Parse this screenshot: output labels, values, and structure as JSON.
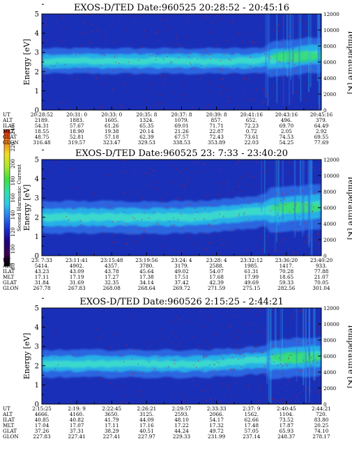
{
  "colors": {
    "background_deep": "#1a2fb8",
    "band_mid": "#2f6fe8",
    "band_core": "#24b8e8",
    "band_hot": "#3fe0c8",
    "green_hot": "#38e04a",
    "noise_red": "#c21a1a"
  },
  "colorbar": {
    "title": "Second Harmonic Current",
    "ticks": [
      "80",
      "100",
      "120",
      "140",
      "160",
      "180",
      "200",
      "220",
      "240"
    ],
    "colors": [
      "#000000",
      "#3c0050",
      "#200080",
      "#1830d0",
      "#2a78f0",
      "#30c8e8",
      "#30e0a8",
      "#40e040",
      "#a8e830",
      "#f0e020",
      "#f08820",
      "#e82010"
    ]
  },
  "chart_data": [
    {
      "type": "heatmap",
      "title": "EXOS-D/TED   Date:960525  20:28:52 - 20:45:16",
      "ylabel": "Energy [eV]",
      "y2label": "Temperature [K]",
      "ylim": [
        0,
        5
      ],
      "y2lim": [
        0,
        12000
      ],
      "yticks": [
        "0",
        "1",
        "2",
        "3",
        "4",
        "5"
      ],
      "y2ticks": [
        "0",
        "2000",
        "4000",
        "6000",
        "8000",
        "10000",
        "12000"
      ],
      "band": {
        "center_ev": 2.55,
        "width_ev": 0.55,
        "right_center_ev": 2.9,
        "rise_start_frac": 0.75
      },
      "rows": [
        {
          "label": "UT",
          "values": [
            "20:28:52",
            "20:31: 0",
            "20:33: 0",
            "20:35: 8",
            "20:37: 8",
            "20:39: 8",
            "20:41:16",
            "20:43:16",
            "20:45:16"
          ]
        },
        {
          "label": "ALT",
          "values": [
            "2189.",
            "1883.",
            "1605.",
            "1324.",
            "1079.",
            "857.",
            "652.",
            "496.",
            "379."
          ]
        },
        {
          "label": "ILAT",
          "values": [
            "54.31",
            "57.67",
            "61.26",
            "65.35",
            "69.01",
            "71.71",
            "72.23",
            "69.70",
            "64.49"
          ]
        },
        {
          "label": "MLT",
          "values": [
            "18.55",
            "18.90",
            "19.38",
            "20.14",
            "21.26",
            "22.87",
            "0.72",
            "2.05",
            "2.92"
          ]
        },
        {
          "label": "GLAT",
          "values": [
            "48.75",
            "52.81",
            "57.18",
            "62.39",
            "67.57",
            "72.43",
            "73.61",
            "74.53",
            "69.55"
          ]
        },
        {
          "label": "GLON",
          "values": [
            "316.48",
            "319.57",
            "323.47",
            "329.53",
            "338.53",
            "353.89",
            "22.03",
            "54.25",
            "77.69"
          ]
        }
      ]
    },
    {
      "type": "heatmap",
      "title": "EXOS-D/TED   Date:960525  23: 7:33 - 23:40:20",
      "ylabel": "Energy [eV]",
      "y2label": "Temperature [K]",
      "ylim": [
        0,
        5
      ],
      "y2lim": [
        0,
        12000
      ],
      "yticks": [
        "0",
        "1",
        "2",
        "3",
        "4",
        "5"
      ],
      "y2ticks": [
        "0",
        "2000",
        "4000",
        "6000",
        "8000",
        "10000",
        "12000"
      ],
      "band": {
        "center_ev": 2.0,
        "width_ev": 0.7,
        "right_center_ev": 2.6,
        "rise_start_frac": 0.55
      },
      "rows": [
        {
          "label": "UT",
          "values": [
            "23: 7:33",
            "23:11:41",
            "23:15:48",
            "23:19:56",
            "23:24: 4",
            "23:28: 4",
            "23:32:12",
            "23:36:20",
            "23:40:20"
          ]
        },
        {
          "label": "ALT",
          "values": [
            "5414.",
            "4902.",
            "4357.",
            "3780.",
            "3179.",
            "2588.",
            "1985.",
            "1417.",
            "933."
          ]
        },
        {
          "label": "ILAT",
          "values": [
            "43.23",
            "43.09",
            "43.78",
            "45.64",
            "49.02",
            "54.07",
            "61.31",
            "70.28",
            "77.88"
          ]
        },
        {
          "label": "MLT",
          "values": [
            "17.11",
            "17.19",
            "17.27",
            "17.38",
            "17.51",
            "17.68",
            "17.99",
            "18.65",
            "21.07"
          ]
        },
        {
          "label": "GLAT",
          "values": [
            "31.84",
            "31.69",
            "32.35",
            "34.14",
            "37.42",
            "42.39",
            "49.69",
            "59.33",
            "70.05"
          ]
        },
        {
          "label": "GLON",
          "values": [
            "267.78",
            "267.83",
            "268.08",
            "268.64",
            "269.72",
            "271.59",
            "275.15",
            "282.56",
            "301.04"
          ]
        }
      ]
    },
    {
      "type": "heatmap",
      "title": "EXOS-D/TED   Date:960526  2:15:25 - 2:44:21",
      "ylabel": "Energy [eV]",
      "y2label": "Temperature [K]",
      "ylim": [
        0,
        5
      ],
      "y2lim": [
        0,
        12000
      ],
      "yticks": [
        "0",
        "1",
        "2",
        "3",
        "4",
        "5"
      ],
      "y2ticks": [
        "0",
        "2000",
        "4000",
        "6000",
        "8000",
        "10000",
        "12000"
      ],
      "band": {
        "center_ev": 2.1,
        "width_ev": 0.6,
        "right_center_ev": 2.5,
        "rise_start_frac": 0.6
      },
      "rows": [
        {
          "label": "UT",
          "values": [
            "2:15:25",
            "2:19: 9",
            "2:22:45",
            "2:26:21",
            "2:29:57",
            "2:33:33",
            "2:37: 9",
            "2:40:45",
            "2:44:21"
          ]
        },
        {
          "label": "ALT",
          "values": [
            "4666.",
            "4160.",
            "3650.",
            "3125.",
            "2593.",
            "2066.",
            "1562.",
            "1104.",
            "720."
          ]
        },
        {
          "label": "ILAT",
          "values": [
            "40.85",
            "40.82",
            "41.79",
            "44.09",
            "48.10",
            "54.17",
            "62.66",
            "73.52",
            "83.80"
          ]
        },
        {
          "label": "MLT",
          "values": [
            "17.04",
            "17.07",
            "17.11",
            "17.16",
            "17.22",
            "17.32",
            "17.48",
            "17.87",
            "20.25"
          ]
        },
        {
          "label": "GLAT",
          "values": [
            "37.26",
            "37.31",
            "38.29",
            "40.51",
            "44.24",
            "49.72",
            "57.05",
            "65.93",
            "74.10"
          ]
        },
        {
          "label": "GLON",
          "values": [
            "227.83",
            "227.41",
            "227.41",
            "227.97",
            "229.33",
            "231.99",
            "237.14",
            "248.37",
            "278.17"
          ]
        }
      ]
    }
  ]
}
